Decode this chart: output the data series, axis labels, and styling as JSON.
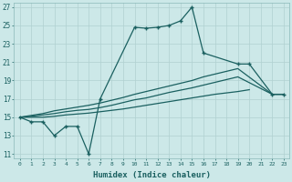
{
  "xlabel": "Humidex (Indice chaleur)",
  "bg_color": "#cce8e8",
  "grid_color": "#b0d0d0",
  "line_color": "#1a6060",
  "xlim": [
    -0.5,
    23.5
  ],
  "ylim": [
    10.5,
    27.5
  ],
  "yticks": [
    11,
    13,
    15,
    17,
    19,
    21,
    23,
    25,
    27
  ],
  "xticks": [
    0,
    1,
    2,
    3,
    4,
    5,
    6,
    7,
    8,
    9,
    10,
    11,
    12,
    13,
    14,
    15,
    16,
    17,
    18,
    19,
    20,
    21,
    22,
    23
  ],
  "line1_x": [
    0,
    1,
    2,
    3,
    4,
    5,
    6,
    7,
    10,
    11,
    12,
    13,
    14,
    15,
    16,
    19,
    20,
    22,
    23
  ],
  "line1_y": [
    15,
    14.5,
    14.5,
    13,
    14,
    14,
    11,
    17,
    24.8,
    24.7,
    24.8,
    25,
    25.5,
    27,
    22,
    20.8,
    20.8,
    17.5,
    17.5
  ],
  "line2_x": [
    0,
    1,
    2,
    3,
    4,
    5,
    6,
    7,
    8,
    9,
    10,
    11,
    12,
    13,
    14,
    15,
    16,
    17,
    18,
    19,
    20
  ],
  "line2_y": [
    15,
    15.0,
    15.0,
    15.1,
    15.25,
    15.35,
    15.45,
    15.6,
    15.75,
    15.9,
    16.1,
    16.3,
    16.5,
    16.7,
    16.9,
    17.1,
    17.3,
    17.5,
    17.65,
    17.8,
    18.0
  ],
  "line3_x": [
    0,
    1,
    2,
    3,
    4,
    5,
    6,
    7,
    8,
    9,
    10,
    11,
    12,
    13,
    14,
    15,
    16,
    17,
    18,
    19,
    22,
    23
  ],
  "line3_y": [
    15,
    15.1,
    15.25,
    15.4,
    15.6,
    15.75,
    15.85,
    16.05,
    16.3,
    16.6,
    16.9,
    17.1,
    17.4,
    17.7,
    17.95,
    18.2,
    18.5,
    18.8,
    19.1,
    19.4,
    17.5,
    17.5
  ],
  "line4_x": [
    0,
    1,
    2,
    3,
    4,
    5,
    6,
    7,
    8,
    9,
    10,
    11,
    12,
    13,
    14,
    15,
    16,
    17,
    18,
    19,
    22,
    23
  ],
  "line4_y": [
    15,
    15.2,
    15.4,
    15.7,
    15.9,
    16.1,
    16.3,
    16.55,
    16.85,
    17.15,
    17.5,
    17.8,
    18.1,
    18.4,
    18.7,
    19.0,
    19.4,
    19.7,
    20.0,
    20.3,
    17.5,
    17.5
  ]
}
